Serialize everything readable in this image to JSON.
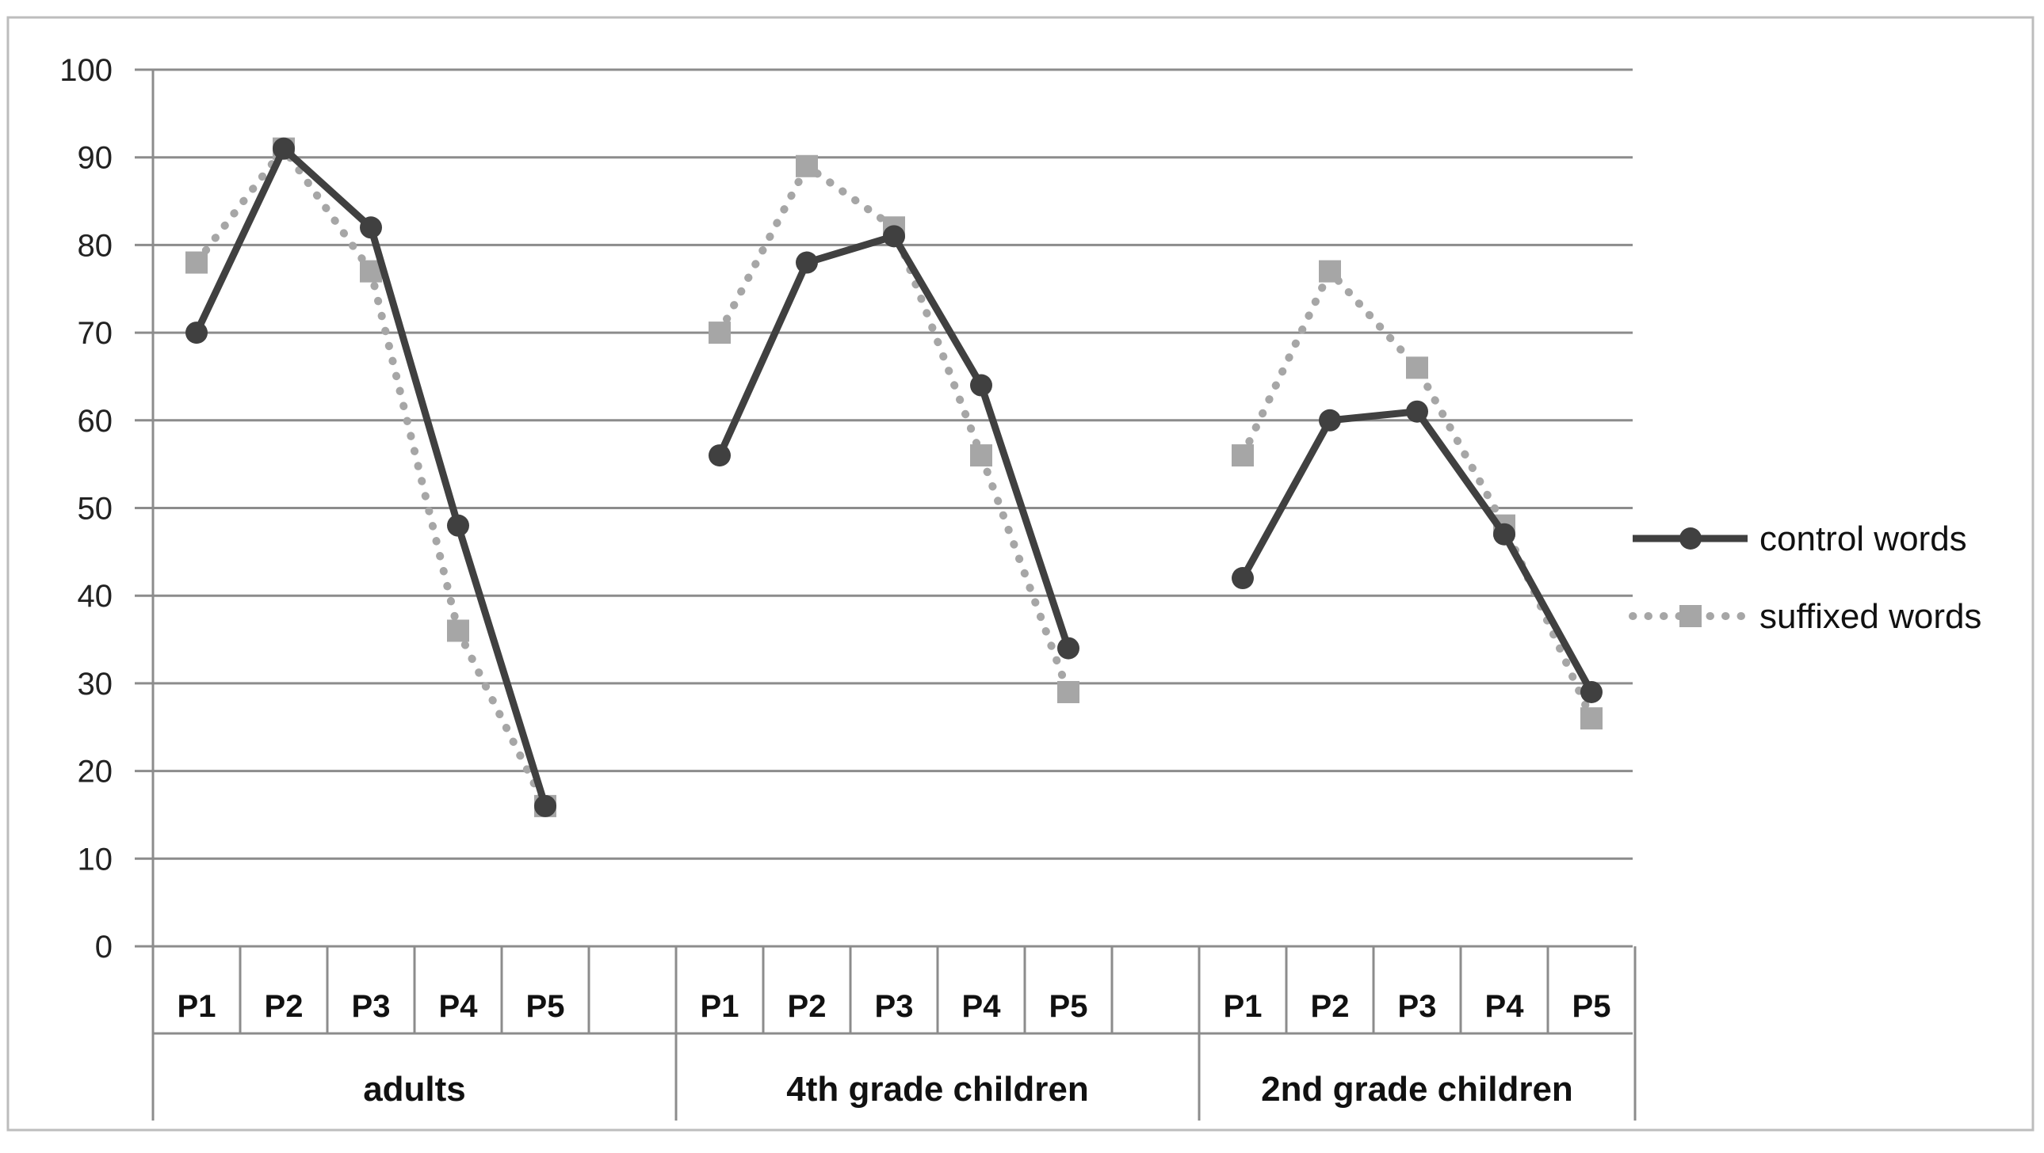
{
  "chart_data": {
    "type": "line",
    "title": "",
    "xlabel": "",
    "ylabel": "",
    "ylim": [
      0,
      100
    ],
    "y_ticks": [
      "0",
      "10",
      "20",
      "30",
      "40",
      "50",
      "60",
      "70",
      "80",
      "90",
      "100"
    ],
    "grid": true,
    "legend_position": "right",
    "groups": [
      {
        "label": "adults",
        "positions": [
          "P1",
          "P2",
          "P3",
          "P4",
          "P5"
        ]
      },
      {
        "label": "4th grade children",
        "positions": [
          "P1",
          "P2",
          "P3",
          "P4",
          "P5"
        ]
      },
      {
        "label": "2nd grade children",
        "positions": [
          "P1",
          "P2",
          "P3",
          "P4",
          "P5"
        ]
      }
    ],
    "series": [
      {
        "name": "control words",
        "style": "solid-circle",
        "color": "#404040",
        "values": [
          [
            70,
            91,
            82,
            48,
            16
          ],
          [
            56,
            78,
            81,
            64,
            34
          ],
          [
            42,
            60,
            61,
            47,
            29
          ]
        ]
      },
      {
        "name": "suffixed words",
        "style": "dotted-square",
        "color": "#A6A6A6",
        "values": [
          [
            78,
            91,
            77,
            36,
            16
          ],
          [
            70,
            89,
            82,
            56,
            29
          ],
          [
            56,
            77,
            66,
            48,
            26
          ]
        ]
      }
    ]
  }
}
